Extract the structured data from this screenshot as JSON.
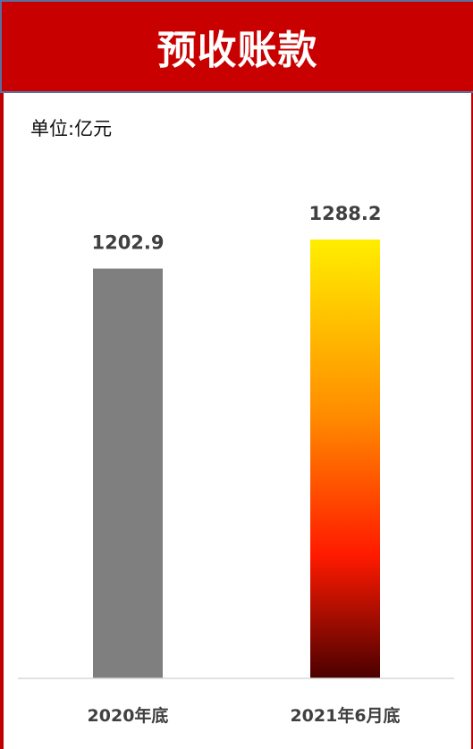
{
  "header": {
    "title": "预收账款"
  },
  "unit_label": "单位:亿元",
  "colors": {
    "header_bg": "#c80000",
    "border": "#c00000",
    "bar_2020": "#7f7f7f",
    "bar_2021_gradient": [
      "#ffee00",
      "#ff8c00",
      "#ff1a00",
      "#4a0000"
    ],
    "label_text": "#404040"
  },
  "chart_data": {
    "type": "bar",
    "title": "预收账款",
    "unit": "单位:亿元",
    "categories": [
      "2020年底",
      "2021年6月底"
    ],
    "values": [
      1202.9,
      1288.2
    ],
    "value_labels": [
      "1202.9",
      "1288.2"
    ],
    "xlabel": "",
    "ylabel": "",
    "grid": false,
    "legend": "none"
  }
}
